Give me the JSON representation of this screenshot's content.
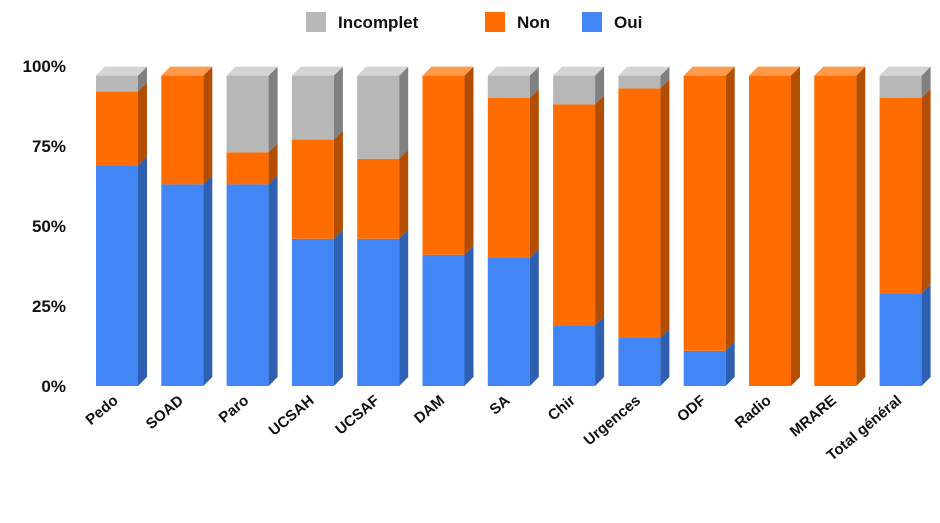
{
  "chart_data": {
    "type": "bar",
    "stacked": true,
    "percent": true,
    "categories": [
      "Pedo",
      "SOAD",
      "Paro",
      "UCSAH",
      "UCSAF",
      "DAM",
      "SA",
      "Chir",
      "Urgences",
      "ODF",
      "Radio",
      "MRARE",
      "Total général"
    ],
    "series": [
      {
        "name": "Oui",
        "color": "#4285f4",
        "side": "#2f5fb0",
        "top": "#6c9ff0",
        "values": [
          69,
          63,
          63,
          46,
          46,
          41,
          40,
          19,
          15,
          11,
          0,
          0,
          29
        ]
      },
      {
        "name": "Non",
        "color": "#ff6d00",
        "side": "#b34d00",
        "top": "#ff9a4d",
        "values": [
          23,
          34,
          10,
          31,
          25,
          56,
          50,
          69,
          78,
          86,
          97,
          97,
          61
        ]
      },
      {
        "name": "Incomplet",
        "color": "#b7b7b7",
        "side": "#808080",
        "top": "#d4d4d4",
        "values": [
          5,
          0,
          24,
          20,
          26,
          0,
          7,
          9,
          4,
          0,
          0,
          0,
          7
        ]
      }
    ],
    "legend_order": [
      "Incomplet",
      "Non",
      "Oui"
    ],
    "legend_position": "top-center",
    "ylim": [
      0,
      100
    ],
    "yticks": [
      {
        "value": 0,
        "label": "0%"
      },
      {
        "value": 25,
        "label": "25%"
      },
      {
        "value": 50,
        "label": "50%"
      },
      {
        "value": 75,
        "label": "75%"
      },
      {
        "value": 100,
        "label": "100%"
      }
    ],
    "grid": false,
    "style": "3d-columns"
  }
}
